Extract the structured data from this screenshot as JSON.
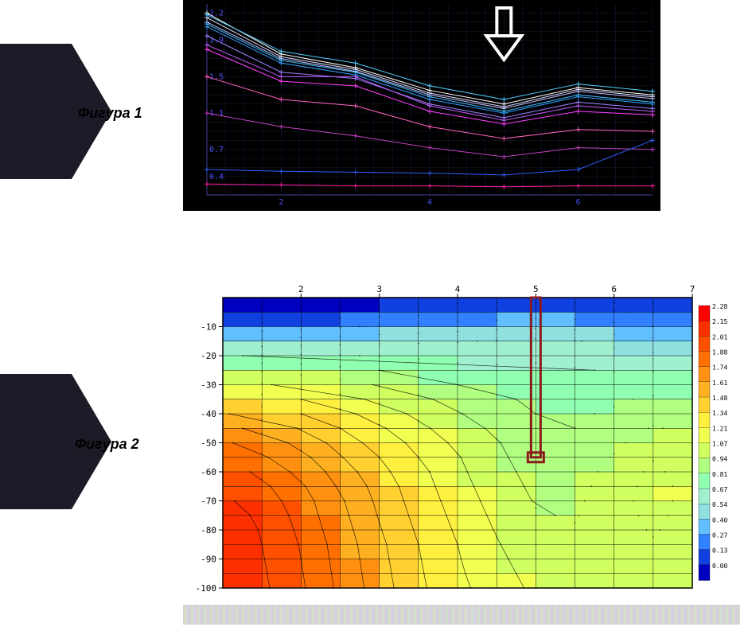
{
  "labels": {
    "figure1": "Фигура 1",
    "figure2": "Фигура 2"
  },
  "chart1": {
    "type": "line",
    "background_color": "#000000",
    "grid_color": "#1a1a3a",
    "axis_label_color": "#5050ff",
    "y_ticks": [
      0.4,
      0.7,
      1.1,
      1.5,
      1.9,
      2.2
    ],
    "x_ticks": [
      2,
      4,
      6
    ],
    "ylim": [
      0.2,
      2.3
    ],
    "xlim": [
      1,
      7
    ],
    "arrow": {
      "x": 5,
      "color": "#ffffff"
    },
    "series": [
      {
        "color": "#ffffff",
        "values": [
          2.2,
          1.75,
          1.6,
          1.35,
          1.2,
          1.38,
          1.3
        ]
      },
      {
        "color": "#e0e0ff",
        "values": [
          2.15,
          1.72,
          1.58,
          1.32,
          1.17,
          1.36,
          1.28
        ]
      },
      {
        "color": "#c0c0ff",
        "values": [
          2.1,
          1.7,
          1.56,
          1.3,
          1.15,
          1.34,
          1.26
        ]
      },
      {
        "color": "#50d0ff",
        "values": [
          2.18,
          1.78,
          1.65,
          1.4,
          1.25,
          1.42,
          1.34
        ]
      },
      {
        "color": "#40c0ff",
        "values": [
          2.08,
          1.68,
          1.55,
          1.28,
          1.12,
          1.3,
          1.22
        ]
      },
      {
        "color": "#30a0ff",
        "values": [
          2.05,
          1.65,
          1.52,
          1.25,
          1.1,
          1.28,
          1.2
        ]
      },
      {
        "color": "#a080ff",
        "values": [
          1.95,
          1.55,
          1.48,
          1.2,
          1.05,
          1.22,
          1.15
        ]
      },
      {
        "color": "#c060ff",
        "values": [
          1.85,
          1.5,
          1.5,
          1.18,
          1.02,
          1.18,
          1.12
        ]
      },
      {
        "color": "#ff40ff",
        "values": [
          1.8,
          1.45,
          1.4,
          1.12,
          0.98,
          1.12,
          1.08
        ]
      },
      {
        "color": "#ff60c0",
        "values": [
          1.5,
          1.25,
          1.18,
          0.95,
          0.82,
          0.92,
          0.9
        ]
      },
      {
        "color": "#c040c0",
        "values": [
          1.1,
          0.95,
          0.85,
          0.72,
          0.62,
          0.72,
          0.7
        ]
      },
      {
        "color": "#3060ff",
        "values": [
          0.48,
          0.46,
          0.45,
          0.44,
          0.42,
          0.48,
          0.8
        ]
      },
      {
        "color": "#ff20a0",
        "values": [
          0.32,
          0.31,
          0.3,
          0.3,
          0.29,
          0.3,
          0.3
        ]
      }
    ]
  },
  "chart2": {
    "type": "heatmap",
    "x_ticks": [
      2,
      3,
      4,
      5,
      6,
      7
    ],
    "y_ticks": [
      -10,
      -20,
      -30,
      -40,
      -50,
      -60,
      -70,
      -80,
      -90,
      -100
    ],
    "xlim": [
      1,
      7
    ],
    "ylim": [
      -100,
      0
    ],
    "marker": {
      "x": 5,
      "y_top": 0,
      "y_bot": -55,
      "color": "#8b1a1a",
      "width": 6
    },
    "legend": {
      "values": [
        2.28,
        2.15,
        2.01,
        1.88,
        1.74,
        1.61,
        1.48,
        1.34,
        1.21,
        1.07,
        0.94,
        0.81,
        0.67,
        0.54,
        0.4,
        0.27,
        0.13,
        0.0
      ],
      "colors": [
        "#ff0000",
        "#ff3000",
        "#ff5000",
        "#ff7000",
        "#ff9010",
        "#ffb020",
        "#ffd030",
        "#fff040",
        "#f0ff50",
        "#d0ff60",
        "#b0ff80",
        "#90ffb0",
        "#a0f0d0",
        "#90e0e0",
        "#60c0ff",
        "#3080ff",
        "#1040e0",
        "#0000c0"
      ]
    },
    "grid": {
      "nx": 13,
      "ny": 21,
      "values": [
        [
          0.05,
          0.05,
          0.05,
          0.05,
          0.05,
          0.05,
          0.05,
          0.05,
          0.05,
          0.05,
          0.05,
          0.05,
          0.05
        ],
        [
          0.15,
          0.15,
          0.15,
          0.18,
          0.2,
          0.22,
          0.25,
          0.28,
          0.3,
          0.3,
          0.28,
          0.25,
          0.25
        ],
        [
          0.3,
          0.32,
          0.35,
          0.38,
          0.42,
          0.45,
          0.48,
          0.5,
          0.52,
          0.5,
          0.45,
          0.4,
          0.4
        ],
        [
          0.55,
          0.58,
          0.6,
          0.62,
          0.64,
          0.65,
          0.66,
          0.68,
          0.7,
          0.68,
          0.62,
          0.58,
          0.58
        ],
        [
          0.8,
          0.82,
          0.83,
          0.82,
          0.8,
          0.78,
          0.76,
          0.76,
          0.78,
          0.76,
          0.72,
          0.7,
          0.7
        ],
        [
          1.05,
          1.05,
          1.02,
          0.98,
          0.94,
          0.9,
          0.86,
          0.84,
          0.84,
          0.82,
          0.8,
          0.8,
          0.8
        ],
        [
          1.25,
          1.22,
          1.18,
          1.12,
          1.06,
          1.0,
          0.94,
          0.9,
          0.88,
          0.86,
          0.86,
          0.88,
          0.88
        ],
        [
          1.45,
          1.4,
          1.34,
          1.26,
          1.18,
          1.1,
          1.02,
          0.96,
          0.92,
          0.9,
          0.92,
          0.96,
          0.95
        ],
        [
          1.62,
          1.56,
          1.48,
          1.38,
          1.28,
          1.18,
          1.08,
          1.0,
          0.94,
          0.92,
          0.96,
          1.02,
          1.0
        ],
        [
          1.78,
          1.7,
          1.6,
          1.48,
          1.36,
          1.24,
          1.14,
          1.04,
          0.96,
          0.94,
          1.0,
          1.08,
          1.04
        ],
        [
          1.9,
          1.82,
          1.7,
          1.56,
          1.42,
          1.3,
          1.18,
          1.08,
          0.98,
          0.96,
          1.04,
          1.14,
          1.08
        ],
        [
          2.0,
          1.9,
          1.78,
          1.62,
          1.48,
          1.34,
          1.22,
          1.1,
          1.0,
          0.98,
          1.08,
          1.2,
          1.12
        ],
        [
          2.08,
          1.98,
          1.84,
          1.68,
          1.52,
          1.38,
          1.24,
          1.12,
          1.02,
          1.0,
          1.12,
          1.24,
          1.14
        ],
        [
          2.14,
          2.04,
          1.9,
          1.72,
          1.56,
          1.4,
          1.26,
          1.14,
          1.04,
          1.02,
          1.14,
          1.26,
          1.16
        ],
        [
          2.18,
          2.08,
          1.94,
          1.76,
          1.58,
          1.42,
          1.28,
          1.16,
          1.06,
          1.04,
          1.16,
          1.26,
          1.16
        ],
        [
          2.22,
          2.12,
          1.96,
          1.78,
          1.6,
          1.44,
          1.3,
          1.18,
          1.08,
          1.06,
          1.16,
          1.24,
          1.16
        ],
        [
          2.24,
          2.14,
          1.98,
          1.8,
          1.62,
          1.46,
          1.32,
          1.2,
          1.1,
          1.08,
          1.16,
          1.22,
          1.16
        ],
        [
          2.26,
          2.15,
          2.0,
          1.82,
          1.64,
          1.48,
          1.34,
          1.22,
          1.12,
          1.1,
          1.16,
          1.2,
          1.16
        ],
        [
          2.27,
          2.16,
          2.01,
          1.83,
          1.65,
          1.49,
          1.35,
          1.24,
          1.14,
          1.12,
          1.16,
          1.18,
          1.16
        ],
        [
          2.28,
          2.17,
          2.02,
          1.84,
          1.66,
          1.5,
          1.36,
          1.26,
          1.16,
          1.14,
          1.16,
          1.16,
          1.16
        ],
        [
          2.28,
          2.18,
          2.03,
          1.85,
          1.67,
          1.51,
          1.37,
          1.28,
          1.18,
          1.16,
          1.16,
          1.16,
          1.16
        ]
      ]
    }
  }
}
